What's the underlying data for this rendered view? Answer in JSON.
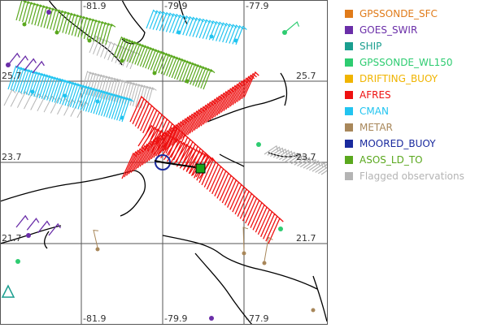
{
  "map": {
    "grid_labels": {
      "top": [
        "-81.9",
        "-79.9",
        "-77.9"
      ],
      "bottom": [
        "-81.9",
        "-79.9",
        "-77.9"
      ],
      "left": [
        "25.7",
        "23.7",
        "21.7"
      ],
      "right": [
        "25.7",
        "23.7",
        "21.7"
      ]
    }
  },
  "legend": {
    "items": [
      {
        "label": "GPSSONDE_SFC",
        "color": "#e07b1a"
      },
      {
        "label": "GOES_SWIR",
        "color": "#6a2ea8"
      },
      {
        "label": "SHIP",
        "color": "#1a9e8f"
      },
      {
        "label": "GPSSONDE_WL150",
        "color": "#2ecc71"
      },
      {
        "label": "DRIFTING_BUOY",
        "color": "#f0b400"
      },
      {
        "label": "AFRES",
        "color": "#ee1111"
      },
      {
        "label": "CMAN",
        "color": "#22c4f0"
      },
      {
        "label": "METAR",
        "color": "#a8875a"
      },
      {
        "label": "MOORED_BUOY",
        "color": "#1a2a9e"
      },
      {
        "label": "ASOS_LD_TO",
        "color": "#5aa81e"
      },
      {
        "label": "Flagged observations",
        "color": "#b4b4b4"
      }
    ]
  }
}
